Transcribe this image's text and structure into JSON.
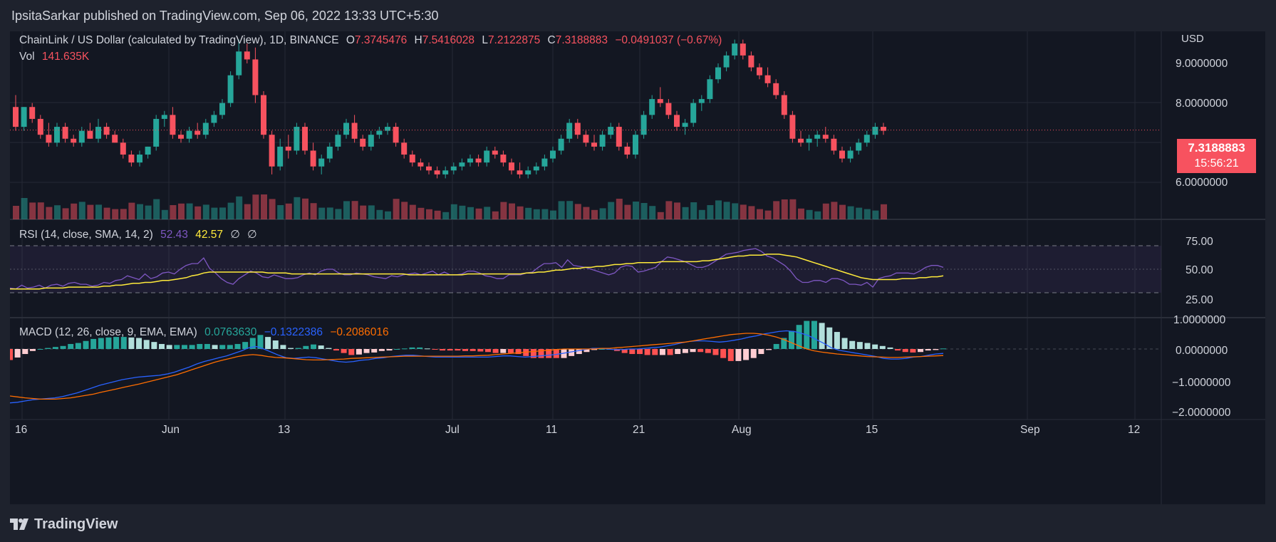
{
  "header": {
    "publisher": "IpsitaSarkar published on TradingView.com, Sep 06, 2022 13:33 UTC+5:30"
  },
  "symbol": {
    "name": "ChainLink / US Dollar (calculated by TradingView), 1D, BINANCE",
    "open_label": "O",
    "open": "7.3745476",
    "high_label": "H",
    "high": "7.5416028",
    "low_label": "L",
    "low": "7.2122875",
    "close_label": "C",
    "close": "7.3188883",
    "change": "−0.0491037 (−0.67%)",
    "vol_label": "Vol",
    "vol": "141.635K"
  },
  "price_axis": {
    "currency": "USD",
    "ticks": [
      "9.0000000",
      "8.0000000",
      "6.0000000"
    ],
    "last_price": "7.3188883",
    "countdown": "15:56:21"
  },
  "rsi": {
    "label": "RSI (14, close, SMA, 14, 2)",
    "value": "52.43",
    "sma": "42.57",
    "n1": "∅",
    "n2": "∅",
    "ticks": [
      "75.00",
      "50.00",
      "25.00"
    ],
    "series": [
      30,
      29,
      33,
      30,
      31,
      33,
      30,
      33,
      34,
      32,
      35,
      36,
      34,
      34,
      32,
      33,
      36,
      35,
      38,
      39,
      43,
      41,
      39,
      45,
      40,
      42,
      46,
      47,
      45,
      50,
      54,
      56,
      56,
      62,
      51,
      46,
      40,
      36,
      34,
      40,
      44,
      48,
      46,
      42,
      41,
      44,
      42,
      40,
      40,
      41,
      44,
      46,
      44,
      48,
      50,
      50,
      46,
      44,
      44,
      46,
      45,
      44,
      42,
      41,
      40,
      43,
      42,
      44,
      45,
      46,
      44,
      46,
      48,
      44,
      47,
      44,
      44,
      45,
      48,
      48,
      46,
      43,
      42,
      40,
      40,
      44,
      44,
      44,
      46,
      47,
      52,
      56,
      56,
      57,
      52,
      60,
      54,
      53,
      52,
      50,
      48,
      46,
      44,
      46,
      52,
      54,
      53,
      47,
      48,
      50,
      52,
      58,
      63,
      62,
      60,
      58,
      55,
      52,
      52,
      54,
      58,
      62,
      66,
      67,
      68,
      70,
      71,
      72,
      69,
      64,
      62,
      58,
      54,
      48,
      40,
      36,
      36,
      38,
      38,
      36,
      40,
      40,
      38,
      34,
      34,
      33,
      36,
      31,
      40,
      42,
      43,
      46,
      46,
      46,
      45,
      48,
      52,
      54,
      54,
      52
    ],
    "sma_series": [
      29,
      29,
      29,
      29,
      29,
      29,
      30,
      30,
      30,
      30,
      31,
      31,
      31,
      31,
      31,
      31,
      32,
      32,
      33,
      33,
      34,
      35,
      35,
      36,
      36,
      37,
      38,
      38,
      39,
      40,
      41,
      43,
      44,
      46,
      47,
      47,
      47,
      47,
      47,
      47,
      47,
      47,
      47,
      47,
      46,
      46,
      46,
      46,
      45,
      45,
      45,
      45,
      45,
      45,
      45,
      45,
      45,
      45,
      45,
      45,
      45,
      45,
      45,
      45,
      45,
      45,
      45,
      45,
      44,
      44,
      44,
      44,
      44,
      44,
      44,
      44,
      44,
      44,
      45,
      45,
      45,
      45,
      45,
      45,
      45,
      45,
      45,
      45,
      46,
      46,
      47,
      47,
      48,
      49,
      49,
      50,
      51,
      51,
      52,
      52,
      53,
      53,
      54,
      55,
      55,
      56,
      56,
      57,
      57,
      57,
      57,
      58,
      58,
      58,
      58,
      58,
      58,
      58,
      59,
      59,
      60,
      61,
      62,
      63,
      64,
      64,
      65,
      65,
      65,
      66,
      66,
      66,
      65,
      64,
      63,
      61,
      59,
      57,
      55,
      53,
      51,
      49,
      47,
      45,
      43,
      41,
      40,
      39,
      39,
      39,
      39,
      39,
      40,
      40,
      40,
      41,
      41,
      42,
      42,
      43
    ]
  },
  "macd": {
    "label": "MACD (12, 26, close, 9, EMA, EMA)",
    "hist": "0.0763630",
    "macd": "−0.1322386",
    "signal": "−0.2086016",
    "ticks": [
      "1.0000000",
      "0.0000000",
      "−1.0000000",
      "−2.0000000"
    ],
    "macd_series": [
      -1.72,
      -1.7,
      -1.66,
      -1.62,
      -1.6,
      -1.58,
      -1.56,
      -1.52,
      -1.46,
      -1.4,
      -1.32,
      -1.24,
      -1.16,
      -1.1,
      -1.04,
      -0.98,
      -0.94,
      -0.9,
      -0.88,
      -0.86,
      -0.84,
      -0.8,
      -0.74,
      -0.66,
      -0.58,
      -0.48,
      -0.4,
      -0.34,
      -0.28,
      -0.22,
      -0.14,
      -0.06,
      0.04,
      0.08,
      0.0,
      -0.1,
      -0.2,
      -0.28,
      -0.3,
      -0.28,
      -0.26,
      -0.28,
      -0.32,
      -0.36,
      -0.4,
      -0.42,
      -0.4,
      -0.36,
      -0.34,
      -0.3,
      -0.28,
      -0.24,
      -0.22,
      -0.2,
      -0.2,
      -0.22,
      -0.24,
      -0.26,
      -0.26,
      -0.26,
      -0.26,
      -0.26,
      -0.26,
      -0.26,
      -0.26,
      -0.24,
      -0.22,
      -0.22,
      -0.24,
      -0.26,
      -0.24,
      -0.22,
      -0.2,
      -0.18,
      -0.14,
      -0.1,
      -0.06,
      -0.02,
      0.02,
      0.02,
      0.0,
      -0.02,
      -0.02,
      0.0,
      0.0,
      0.02,
      0.04,
      0.06,
      0.1,
      0.14,
      0.2,
      0.24,
      0.26,
      0.26,
      0.24,
      0.22,
      0.24,
      0.28,
      0.32,
      0.38,
      0.42,
      0.48,
      0.52,
      0.56,
      0.58,
      0.56,
      0.5,
      0.42,
      0.3,
      0.18,
      0.04,
      -0.04,
      -0.08,
      -0.12,
      -0.16,
      -0.2,
      -0.24,
      -0.3,
      -0.32,
      -0.32,
      -0.3,
      -0.26,
      -0.24,
      -0.2,
      -0.16,
      -0.14
    ],
    "signal_series": [
      -1.5,
      -1.53,
      -1.56,
      -1.58,
      -1.6,
      -1.6,
      -1.6,
      -1.58,
      -1.56,
      -1.52,
      -1.48,
      -1.44,
      -1.38,
      -1.33,
      -1.28,
      -1.22,
      -1.17,
      -1.12,
      -1.06,
      -1.0,
      -0.94,
      -0.88,
      -0.82,
      -0.74,
      -0.66,
      -0.58,
      -0.5,
      -0.42,
      -0.36,
      -0.3,
      -0.24,
      -0.2,
      -0.18,
      -0.2,
      -0.24,
      -0.27,
      -0.28,
      -0.3,
      -0.32,
      -0.34,
      -0.35,
      -0.35,
      -0.34,
      -0.33,
      -0.32,
      -0.3,
      -0.29,
      -0.28,
      -0.27,
      -0.26,
      -0.25,
      -0.24,
      -0.23,
      -0.23,
      -0.23,
      -0.23,
      -0.23,
      -0.23,
      -0.23,
      -0.23,
      -0.22,
      -0.22,
      -0.21,
      -0.2,
      -0.18,
      -0.16,
      -0.14,
      -0.12,
      -0.1,
      -0.08,
      -0.06,
      -0.04,
      -0.02,
      0.0,
      0.0,
      0.0,
      0.0,
      0.0,
      0.02,
      0.02,
      0.04,
      0.06,
      0.08,
      0.1,
      0.12,
      0.14,
      0.16,
      0.18,
      0.2,
      0.22,
      0.26,
      0.3,
      0.34,
      0.38,
      0.42,
      0.46,
      0.48,
      0.5,
      0.5,
      0.48,
      0.44,
      0.38,
      0.3,
      0.2,
      0.1,
      0.0,
      -0.06,
      -0.1,
      -0.13,
      -0.16,
      -0.18,
      -0.2,
      -0.22,
      -0.24,
      -0.25,
      -0.26,
      -0.27,
      -0.27,
      -0.26,
      -0.25,
      -0.24,
      -0.23,
      -0.22,
      -0.21
    ]
  },
  "time_axis": {
    "ticks": [
      "16",
      "Jun",
      "13",
      "Jul",
      "11",
      "21",
      "Aug",
      "15",
      "Sep",
      "12"
    ]
  },
  "chart_data": {
    "type": "candlestick",
    "symbol": "ChainLink / US Dollar",
    "interval": "1D",
    "candles": [
      [
        7.9,
        8.2,
        7.3,
        7.4
      ],
      [
        7.4,
        7.9,
        7.3,
        7.9
      ],
      [
        7.9,
        8.0,
        7.5,
        7.6
      ],
      [
        7.6,
        7.7,
        7.1,
        7.2
      ],
      [
        7.2,
        7.5,
        6.9,
        7.0
      ],
      [
        7.0,
        7.5,
        6.9,
        7.4
      ],
      [
        7.4,
        7.5,
        7.0,
        7.1
      ],
      [
        7.1,
        7.2,
        6.9,
        7.0
      ],
      [
        7.0,
        7.4,
        6.9,
        7.3
      ],
      [
        7.3,
        7.5,
        7.1,
        7.1
      ],
      [
        7.1,
        7.6,
        7.0,
        7.4
      ],
      [
        7.4,
        7.5,
        7.1,
        7.2
      ],
      [
        7.2,
        7.3,
        7.0,
        7.0
      ],
      [
        7.0,
        7.1,
        6.6,
        6.7
      ],
      [
        6.7,
        6.8,
        6.4,
        6.5
      ],
      [
        6.5,
        6.8,
        6.4,
        6.7
      ],
      [
        6.7,
        6.9,
        6.6,
        6.9
      ],
      [
        6.9,
        7.7,
        6.8,
        7.6
      ],
      [
        7.6,
        7.8,
        7.4,
        7.7
      ],
      [
        7.7,
        7.9,
        7.1,
        7.2
      ],
      [
        7.2,
        7.3,
        7.0,
        7.1
      ],
      [
        7.1,
        7.4,
        7.0,
        7.3
      ],
      [
        7.3,
        7.5,
        7.1,
        7.2
      ],
      [
        7.2,
        7.6,
        7.1,
        7.5
      ],
      [
        7.5,
        7.8,
        7.4,
        7.7
      ],
      [
        7.7,
        8.1,
        7.6,
        8.0
      ],
      [
        8.0,
        8.8,
        7.9,
        8.7
      ],
      [
        8.7,
        9.6,
        8.6,
        9.3
      ],
      [
        9.3,
        9.5,
        9.0,
        9.1
      ],
      [
        9.1,
        9.4,
        8.0,
        8.2
      ],
      [
        8.2,
        8.3,
        7.1,
        7.2
      ],
      [
        7.2,
        7.3,
        6.2,
        6.4
      ],
      [
        6.4,
        7.1,
        6.3,
        6.9
      ],
      [
        6.9,
        7.2,
        6.6,
        6.8
      ],
      [
        6.8,
        7.5,
        6.7,
        7.4
      ],
      [
        7.4,
        7.5,
        6.7,
        6.8
      ],
      [
        6.8,
        7.0,
        6.3,
        6.4
      ],
      [
        6.4,
        6.7,
        6.2,
        6.6
      ],
      [
        6.6,
        7.0,
        6.5,
        6.9
      ],
      [
        6.9,
        7.3,
        6.8,
        7.2
      ],
      [
        7.2,
        7.6,
        7.1,
        7.5
      ],
      [
        7.5,
        7.7,
        7.0,
        7.1
      ],
      [
        7.1,
        7.2,
        6.8,
        6.9
      ],
      [
        6.9,
        7.3,
        6.8,
        7.2
      ],
      [
        7.2,
        7.4,
        7.1,
        7.3
      ],
      [
        7.3,
        7.5,
        7.2,
        7.4
      ],
      [
        7.4,
        7.5,
        6.9,
        7.0
      ],
      [
        7.0,
        7.1,
        6.6,
        6.7
      ],
      [
        6.7,
        6.8,
        6.4,
        6.5
      ],
      [
        6.5,
        6.6,
        6.3,
        6.4
      ],
      [
        6.4,
        6.5,
        6.2,
        6.3
      ],
      [
        6.3,
        6.4,
        6.1,
        6.2
      ],
      [
        6.2,
        6.4,
        6.1,
        6.3
      ],
      [
        6.3,
        6.5,
        6.2,
        6.4
      ],
      [
        6.4,
        6.6,
        6.3,
        6.5
      ],
      [
        6.5,
        6.7,
        6.4,
        6.6
      ],
      [
        6.6,
        6.7,
        6.4,
        6.5
      ],
      [
        6.5,
        6.9,
        6.4,
        6.8
      ],
      [
        6.8,
        6.9,
        6.6,
        6.7
      ],
      [
        6.7,
        6.8,
        6.4,
        6.5
      ],
      [
        6.5,
        6.6,
        6.2,
        6.3
      ],
      [
        6.3,
        6.5,
        6.1,
        6.2
      ],
      [
        6.2,
        6.4,
        6.1,
        6.3
      ],
      [
        6.3,
        6.5,
        6.2,
        6.4
      ],
      [
        6.4,
        6.7,
        6.3,
        6.6
      ],
      [
        6.6,
        6.9,
        6.5,
        6.8
      ],
      [
        6.8,
        7.2,
        6.7,
        7.1
      ],
      [
        7.1,
        7.6,
        7.0,
        7.5
      ],
      [
        7.5,
        7.6,
        7.1,
        7.2
      ],
      [
        7.2,
        7.3,
        6.9,
        7.0
      ],
      [
        7.0,
        7.2,
        6.8,
        6.9
      ],
      [
        6.9,
        7.3,
        6.8,
        7.2
      ],
      [
        7.2,
        7.5,
        7.1,
        7.4
      ],
      [
        7.4,
        7.5,
        6.8,
        6.9
      ],
      [
        6.9,
        7.0,
        6.6,
        6.7
      ],
      [
        6.7,
        7.3,
        6.6,
        7.2
      ],
      [
        7.2,
        7.8,
        7.1,
        7.7
      ],
      [
        7.7,
        8.2,
        7.6,
        8.1
      ],
      [
        8.1,
        8.4,
        7.9,
        8.0
      ],
      [
        8.0,
        8.1,
        7.6,
        7.7
      ],
      [
        7.7,
        7.8,
        7.3,
        7.4
      ],
      [
        7.4,
        7.6,
        7.2,
        7.5
      ],
      [
        7.5,
        8.1,
        7.4,
        8.0
      ],
      [
        8.0,
        8.2,
        7.8,
        8.1
      ],
      [
        8.1,
        8.7,
        8.0,
        8.6
      ],
      [
        8.6,
        9.0,
        8.5,
        8.9
      ],
      [
        8.9,
        9.3,
        8.8,
        9.2
      ],
      [
        9.2,
        9.6,
        9.1,
        9.5
      ],
      [
        9.5,
        9.6,
        9.1,
        9.2
      ],
      [
        9.2,
        9.3,
        8.8,
        8.9
      ],
      [
        8.9,
        9.0,
        8.6,
        8.7
      ],
      [
        8.7,
        8.9,
        8.4,
        8.5
      ],
      [
        8.5,
        8.6,
        8.1,
        8.2
      ],
      [
        8.2,
        8.3,
        7.6,
        7.7
      ],
      [
        7.7,
        7.8,
        7.0,
        7.1
      ],
      [
        7.1,
        7.3,
        6.9,
        7.0
      ],
      [
        7.0,
        7.2,
        6.8,
        7.1
      ],
      [
        7.1,
        7.3,
        6.9,
        7.2
      ],
      [
        7.2,
        7.4,
        7.0,
        7.1
      ],
      [
        7.1,
        7.2,
        6.7,
        6.8
      ],
      [
        6.8,
        6.9,
        6.5,
        6.6
      ],
      [
        6.6,
        6.9,
        6.5,
        6.8
      ],
      [
        6.8,
        7.1,
        6.7,
        7.0
      ],
      [
        7.0,
        7.3,
        6.9,
        7.2
      ],
      [
        7.2,
        7.5,
        7.1,
        7.4
      ],
      [
        7.4,
        7.5,
        7.2,
        7.3
      ]
    ],
    "last_close": 7.3188883
  }
}
